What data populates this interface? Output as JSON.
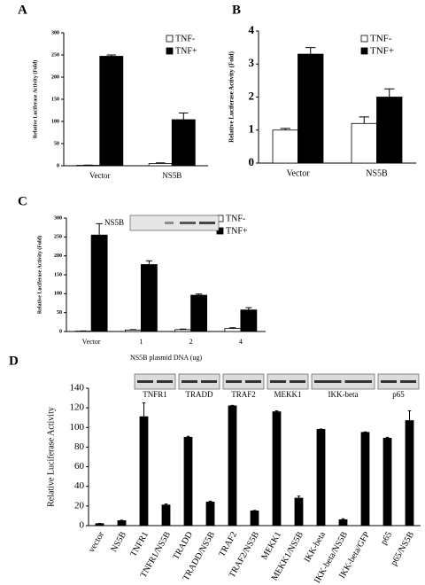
{
  "chart_data": [
    {
      "type": "bar",
      "label": "A",
      "ylabel": "Relative Luciferase Activity (Fold)",
      "categories": [
        "Vector",
        "NS5B"
      ],
      "series": [
        {
          "name": "TNF-",
          "color": "#ffffff",
          "values": [
            1,
            5
          ],
          "errors": [
            0.5,
            1.5
          ]
        },
        {
          "name": "TNF+",
          "color": "#000000",
          "values": [
            247,
            104
          ],
          "errors": [
            3,
            15
          ]
        }
      ],
      "ylim": [
        0,
        300
      ],
      "yticks": [
        0,
        50,
        100,
        150,
        200,
        250,
        300
      ],
      "legend": "upper right"
    },
    {
      "type": "bar",
      "label": "B",
      "ylabel": "Relative Luciferase Activity (Fold)",
      "categories": [
        "Vector",
        "NS5B"
      ],
      "series": [
        {
          "name": "TNF-",
          "color": "#ffffff",
          "values": [
            1.0,
            1.2
          ],
          "errors": [
            0.05,
            0.2
          ]
        },
        {
          "name": "TNF+",
          "color": "#000000",
          "values": [
            3.3,
            2.0
          ],
          "errors": [
            0.2,
            0.25
          ]
        }
      ],
      "ylim": [
        0,
        4
      ],
      "yticks": [
        0,
        1,
        2,
        3,
        4
      ],
      "legend": "upper right"
    },
    {
      "type": "bar",
      "label": "C",
      "ylabel": "Relative Luciferase Activity (Fold)",
      "xlabel": "NS5B plasmid DNA (ug)",
      "inset_label": "NS5B",
      "categories": [
        "Vector",
        "1",
        "2",
        "4"
      ],
      "series": [
        {
          "name": "TNF-",
          "color": "#ffffff",
          "values": [
            1,
            4,
            5,
            8
          ],
          "errors": [
            0.5,
            1,
            1.5,
            2
          ]
        },
        {
          "name": "TNF+",
          "color": "#000000",
          "values": [
            255,
            177,
            96,
            57
          ],
          "errors": [
            30,
            10,
            3,
            6
          ]
        }
      ],
      "ylim": [
        0,
        300
      ],
      "yticks": [
        0,
        50,
        100,
        150,
        200,
        250,
        300
      ],
      "legend": "upper right"
    },
    {
      "type": "bar",
      "label": "D",
      "ylabel": "Relative Luciferase Activity",
      "categories": [
        "vector",
        "NS5B",
        "TNFR1",
        "TNFR1/NS5B",
        "TRADD",
        "TRADD/NS5B",
        "TRAF2",
        "TRAF2/NS5B",
        "MEKK1",
        "MEKK1/NS5B",
        "IKK-beta",
        "IKK-beta/NS5B",
        "IKK-beta/GFP",
        "p65",
        "p65/NS5B"
      ],
      "values": [
        2,
        5,
        111,
        21,
        90,
        24,
        122,
        15,
        116,
        28,
        98,
        6,
        95,
        89,
        107
      ],
      "errors": [
        0.3,
        0.5,
        14,
        1,
        1,
        1,
        0.5,
        0.5,
        1,
        2,
        0.5,
        1,
        0.5,
        1,
        10
      ],
      "color": "#000000",
      "blots": [
        "TNFR1",
        "TRADD",
        "TRAF2",
        "MEKK1",
        "IKK-beta",
        "p65"
      ],
      "ylim": [
        0,
        140
      ],
      "yticks": [
        0,
        20,
        40,
        60,
        80,
        100,
        120,
        140
      ]
    }
  ]
}
